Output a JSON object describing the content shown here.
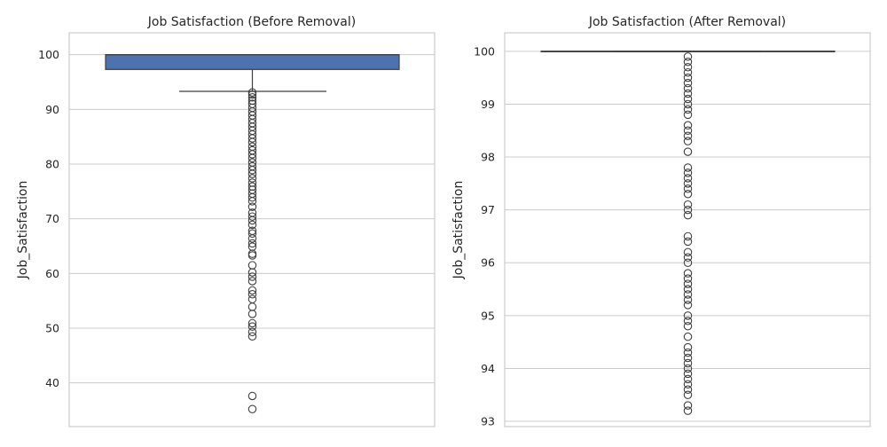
{
  "chart_data": [
    {
      "type": "box",
      "title": "Job Satisfaction (Before Removal)",
      "xlabel": "",
      "ylabel": "Job_Satisfaction",
      "ylim": [
        32,
        104
      ],
      "yticks": [
        40,
        50,
        60,
        70,
        80,
        90,
        100
      ],
      "grid": true,
      "box": {
        "whisker_low": 93.3,
        "q1": 97.3,
        "median": 100,
        "q3": 100,
        "whisker_high": 100,
        "fill": "#4c72b0"
      },
      "outliers": [
        35.2,
        37.6,
        48.5,
        49.3,
        50.3,
        50.9,
        52.6,
        53.9,
        55.3,
        56.2,
        56.9,
        58.6,
        59.4,
        60.2,
        61.5,
        63.3,
        63.6,
        64.9,
        65.5,
        66.4,
        67.3,
        67.8,
        68.9,
        69.7,
        70.4,
        71.1,
        72.2,
        73.2,
        73.9,
        74.6,
        75.3,
        75.9,
        76.6,
        77.4,
        78.2,
        78.9,
        79.6,
        80.3,
        81.1,
        81.8,
        82.5,
        83.2,
        84.0,
        84.7,
        85.4,
        86.1,
        86.8,
        87.5,
        88.2,
        88.9,
        89.6,
        90.3,
        91.0,
        91.6,
        92.2,
        92.7,
        93.1
      ]
    },
    {
      "type": "box",
      "title": "Job Satisfaction (After Removal)",
      "xlabel": "",
      "ylabel": "Job_Satisfaction",
      "ylim": [
        92.9,
        100.35
      ],
      "yticks": [
        93,
        94,
        95,
        96,
        97,
        98,
        99,
        100
      ],
      "grid": true,
      "box": {
        "whisker_low": 100,
        "q1": 100,
        "median": 100,
        "q3": 100,
        "whisker_high": 100,
        "fill": "#4c72b0"
      },
      "outliers": [
        93.2,
        93.3,
        93.5,
        93.6,
        93.7,
        93.8,
        93.9,
        94.0,
        94.1,
        94.2,
        94.3,
        94.4,
        94.6,
        94.8,
        94.9,
        95.0,
        95.2,
        95.3,
        95.4,
        95.5,
        95.6,
        95.7,
        95.8,
        96.0,
        96.1,
        96.2,
        96.4,
        96.5,
        96.9,
        97.0,
        97.1,
        97.3,
        97.4,
        97.5,
        97.6,
        97.7,
        97.8,
        98.1,
        98.3,
        98.4,
        98.5,
        98.6,
        98.8,
        98.9,
        99.0,
        99.1,
        99.2,
        99.3,
        99.4,
        99.5,
        99.6,
        99.7,
        99.8,
        99.9
      ]
    }
  ]
}
